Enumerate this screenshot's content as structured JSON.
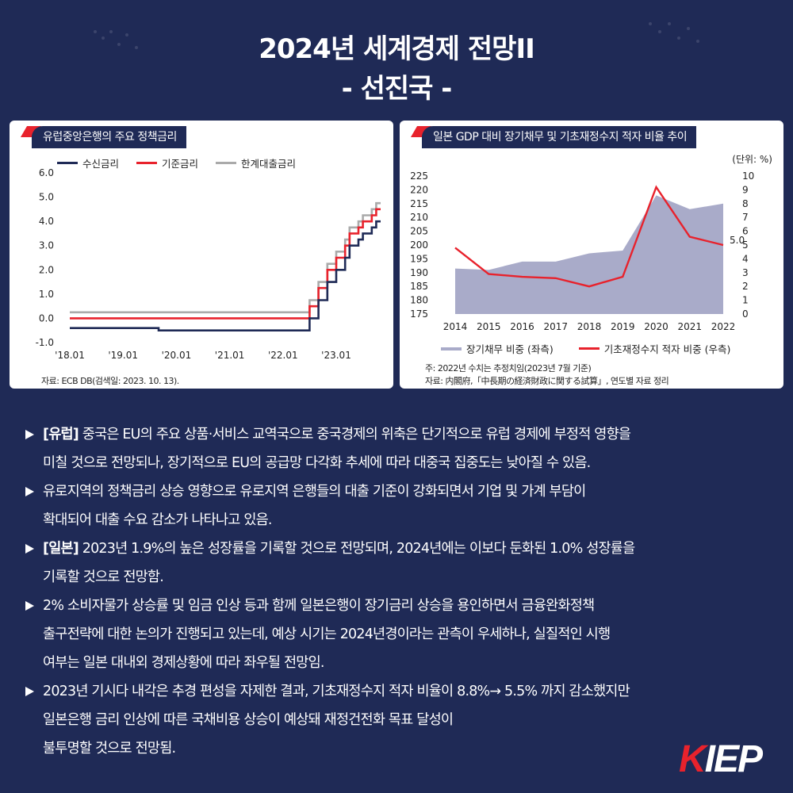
{
  "header": {
    "title_line1": "2024년 세계경제 전망II",
    "title_line2": "- 선진국 -"
  },
  "colors": {
    "background": "#1f2a56",
    "accent_red": "#e8222c",
    "navy": "#1f2a56",
    "gray": "#aaaaaa",
    "area": "#a9abc9"
  },
  "chart_data": [
    {
      "type": "line",
      "title": "유럽중앙은행의 주요 정책금리",
      "x": [
        "2018-01",
        "2018-07",
        "2019-01",
        "2019-09",
        "2020-01",
        "2021-01",
        "2022-01",
        "2022-07",
        "2022-08",
        "2022-09",
        "2022-10",
        "2022-11",
        "2022-12",
        "2023-01",
        "2023-02",
        "2023-03",
        "2023-04",
        "2023-05",
        "2023-06",
        "2023-07",
        "2023-08",
        "2023-09",
        "2023-10"
      ],
      "xtick_labels": [
        "'18.01",
        "'19.01",
        "'20.01",
        "'21.01",
        "'22.01",
        "'23.01"
      ],
      "xtick_dates": [
        "2018-01",
        "2019-01",
        "2020-01",
        "2021-01",
        "2022-01",
        "2023-01"
      ],
      "ylim": [
        -1.0,
        6.0
      ],
      "yticks": [
        "6.0",
        "5.0",
        "4.0",
        "3.0",
        "2.0",
        "1.0",
        "0.0",
        "-1.0"
      ],
      "series": [
        {
          "name": "수신금리",
          "color": "#1f2a56",
          "values": [
            -0.4,
            -0.4,
            -0.4,
            -0.5,
            -0.5,
            -0.5,
            -0.5,
            0.0,
            0.0,
            0.75,
            0.75,
            1.5,
            1.5,
            2.0,
            2.0,
            2.5,
            3.0,
            3.0,
            3.25,
            3.5,
            3.5,
            3.75,
            4.0
          ]
        },
        {
          "name": "기준금리",
          "color": "#e8222c",
          "values": [
            0.0,
            0.0,
            0.0,
            0.0,
            0.0,
            0.0,
            0.0,
            0.5,
            0.5,
            1.25,
            1.25,
            2.0,
            2.0,
            2.5,
            2.5,
            3.0,
            3.5,
            3.5,
            3.75,
            4.0,
            4.0,
            4.25,
            4.5
          ]
        },
        {
          "name": "한계대출금리",
          "color": "#aaaaaa",
          "values": [
            0.25,
            0.25,
            0.25,
            0.25,
            0.25,
            0.25,
            0.25,
            0.75,
            0.75,
            1.5,
            1.5,
            2.25,
            2.25,
            2.75,
            2.75,
            3.25,
            3.75,
            3.75,
            4.0,
            4.25,
            4.25,
            4.5,
            4.75
          ]
        }
      ],
      "source": "자료:  ECB DB(검색일: 2023. 10. 13)."
    },
    {
      "type": "area",
      "title": "일본 GDP 대비 장기채무 및 기초재정수지 적자 비율 추이",
      "unit": "(단위: %)",
      "categories": [
        "2014",
        "2015",
        "2016",
        "2017",
        "2018",
        "2019",
        "2020",
        "2021",
        "2022"
      ],
      "left_ylim": [
        175,
        225
      ],
      "left_yticks": [
        "225",
        "220",
        "215",
        "210",
        "205",
        "200",
        "195",
        "190",
        "185",
        "180",
        "175"
      ],
      "right_ylim": [
        0,
        10
      ],
      "right_yticks": [
        "10",
        "9",
        "8",
        "7",
        "6",
        "5",
        "4",
        "3",
        "2",
        "1",
        "0"
      ],
      "series": [
        {
          "name": "장기채무 비중 (좌측)",
          "axis": "left",
          "kind": "area",
          "values": [
            191.5,
            191,
            194,
            194,
            197,
            198,
            218,
            213,
            215
          ]
        },
        {
          "name": "기초재정수지 적자 비중 (우측)",
          "axis": "right",
          "kind": "line",
          "values": [
            4.8,
            2.9,
            2.7,
            2.6,
            2.0,
            2.7,
            9.2,
            5.6,
            5.0
          ]
        }
      ],
      "annotation": "5.0",
      "notes": [
        "주: 2022년 수치는 추정치임(2023년 7월 기준)",
        "자료:  内閣府,「中長期の経済財政に関する試算」, 연도별 자료 정리"
      ]
    }
  ],
  "bullets": [
    {
      "bold": "[유럽]",
      "text": " 중국은 EU의 주요 상품·서비스 교역국으로 중국경제의 위축은 단기적으로 유럽 경제에 부정적 영향을",
      "text2": "미칠 것으로 전망되나, 장기적으로 EU의 공급망 다각화 추세에 따라 대중국 집중도는 낮아질 수 있음."
    },
    {
      "bold": "",
      "text": "유로지역의 정책금리 상승 영향으로 유로지역 은행들의 대출 기준이 강화되면서 기업 및 가계 부담이",
      "text2": "확대되어 대출 수요 감소가 나타나고 있음."
    },
    {
      "bold": "[일본]",
      "text": " 2023년 1.9%의 높은 성장률을 기록할 것으로 전망되며, 2024년에는 이보다 둔화된 1.0% 성장률을",
      "text2": "기록할 것으로 전망함."
    },
    {
      "bold": "",
      "text": "2% 소비자물가 상승률 및 임금 인상 등과 함께 일본은행이 장기금리 상승을 용인하면서 금융완화정책",
      "text2": "출구전략에 대한 논의가 진행되고 있는데, 예상 시기는 2024년경이라는 관측이 우세하나, 실질적인 시행",
      "text3": "여부는 일본 대내외 경제상황에 따라 좌우될 전망임."
    },
    {
      "bold": "",
      "text": "2023년 기시다 내각은 추경 편성을 자제한 결과, 기초재정수지 적자 비율이 8.8%→ 5.5% 까지 감소했지만",
      "text2": "일본은행 금리 인상에 따른 국채비용 상승이 예상돼 재정건전화 목표 달성이",
      "text3": "불투명할 것으로 전망됨."
    }
  ],
  "logo": {
    "text_k": "K",
    "text_rest": "IEP"
  }
}
